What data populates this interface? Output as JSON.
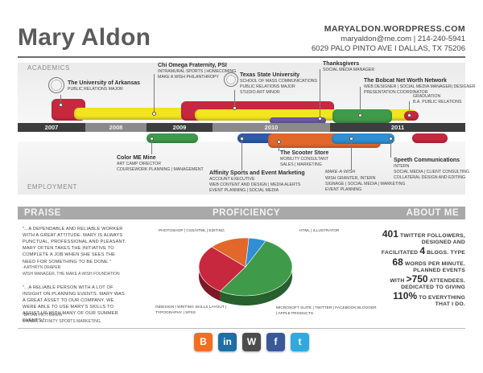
{
  "header": {
    "name": "Mary Aldon",
    "website": "MARYALDON.WORDPRESS.COM",
    "email_phone": "maryaldon@me.com | 214-240-5941",
    "address": "6029 PALO PINTO AVE I DALLAS, TX 75206"
  },
  "timeline": {
    "academics_label": "ACADEMICS",
    "employment_label": "EMPLOYMENT",
    "years": [
      "2007",
      "2008",
      "2009",
      "2010",
      "2011"
    ],
    "academics": [
      {
        "title": "The University of Arkansas",
        "lines": [
          "PUBLIC RELATIONS MAJOR"
        ]
      },
      {
        "title": "Chi Omega Fraternity, PSI",
        "lines": [
          "INTRAMURAL SPORTS | HOMECOMING",
          "MAKE A WISH PHILANTHROPY"
        ]
      },
      {
        "title": "Texas State University",
        "lines": [
          "SCHOOL OF MASS COMMUNICATIONS",
          "PUBLIC RELATIONS MAJOR",
          "STUDIO ART MINOR"
        ]
      },
      {
        "title": "Thanksgivers",
        "lines": [
          "SOCIAL MEDIA MANAGER"
        ]
      },
      {
        "title": "The Bobcat Net Worth Network",
        "lines": [
          "WEB DESIGNER | SOCIAL MEDIA MANAGER| DESIGNER",
          "PRESENTATION COORDINATOR"
        ]
      },
      {
        "title": "",
        "lines": [
          "GRADUATION",
          "B.A. PUBLIC RELATIONS"
        ]
      }
    ],
    "employment": [
      {
        "title": "Color ME Mine",
        "lines": [
          "ART CAMP DIRECTOR",
          "COURSEWORK PLANNING | MANAGEMENT"
        ]
      },
      {
        "title": "Affinity Sports and Event Marketing",
        "lines": [
          "ACCOUNT EXECUTIVE",
          "WEB CONTENT AND DESIGN | MEDIA ALERTS",
          "EVENT PLANNING | SOCIAL MEDIA"
        ]
      },
      {
        "title": "The Scooter Store",
        "lines": [
          "MOBILITY CONSULTANT",
          "SALES | MARKETING"
        ]
      },
      {
        "title": "",
        "lines": [
          "WISH GRANTER, INTERN",
          "SIGNAGE | SOCIAL MEDIA | MARKETING",
          "EVENT PLANNING"
        ]
      },
      {
        "title": "Speeth Communications",
        "lines": [
          "INTERN",
          "SOCIAL MEDIA | CLIENT CONSULTING",
          "COLLATERAL DESIGN AND EDITING"
        ]
      }
    ],
    "maw_logo": "MAKE·A·WISH"
  },
  "sections": {
    "praise": "PRAISE",
    "proficiency": "PROFICIENCY",
    "about": "ABOUT ME"
  },
  "praise": [
    {
      "text": "\"...A DEPENDABLE AND RELIABLE WORKER WITH A GREAT ATTITUDE. MARY IS ALWAYS PUNCTUAL, PROFESSIONAL AND PLEASANT. MARY OFTEN TAKES THE INITIATIVE TO COMPLETE A JOB WHEN SHE SEES THE NEED FOR SOMETHING TO BE DONE.\"",
      "author": "-KATHRYN DRAPER",
      "role": "WISH MANAGER, THE MAKE A WISH FOUNDATION"
    },
    {
      "text": "\"...A RELIABLE PERSON WITH A LOT OF INSIGHT ON PLANNING EVENTS. MARY WAS A GREAT ASSET TO OUR COMPANY. WE WERE ABLE TO USE MARY'S SKILLS TO ASSIST US WITH MANY OF OUR SUMMER EVENTS.\"",
      "author": "-BRYAN PETTIGREW",
      "role": "OWNER, AFFINITY SPORTS MARKETING"
    }
  ],
  "chart_data": {
    "type": "pie",
    "slices": [
      {
        "label": "MICROSOFT SUITE | TWITTER | FACEBOOK BLOGGER | APPLE PRODUCTS",
        "value": 52,
        "color": "#3f9a49"
      },
      {
        "label": "INDESIGN | WRITING SKILLS LAYOUT | TYPOGRAPHY | SPSS",
        "value": 28,
        "color": "#c8283e"
      },
      {
        "label": "PHOTOSHOP | CSS/HTML | EDITING",
        "value": 14,
        "color": "#e2672a"
      },
      {
        "label": "HTML | ILLUSTRATOR",
        "value": 6,
        "color": "#2f8fd2"
      }
    ]
  },
  "about": {
    "line1_num": "401",
    "line1_text": "TWITTER FOLLOWERS,",
    "line2_text": "DESIGNED AND",
    "line3_pre": "FACILITATED",
    "line3_num": "4",
    "line3_post": "BLOGS. TYPE",
    "line4_num": "68",
    "line4_text": "WORDS PER MINUTE.",
    "line5_text": "PLANNED EVENTS",
    "line6_pre": "WITH",
    "line6_num": ">750",
    "line6_post": "ATTENDEES.",
    "line7_text": "DEDICATED TO GIVING",
    "line8_num": "110%",
    "line8_text": "TO EVERYTHING",
    "line9_text": "THAT I DO."
  },
  "social": [
    {
      "name": "blogger-icon",
      "glyph": "B",
      "color": "#f26f21"
    },
    {
      "name": "linkedin-icon",
      "glyph": "in",
      "color": "#1d6fa5"
    },
    {
      "name": "wordpress-icon",
      "glyph": "W",
      "color": "#4c4c4c"
    },
    {
      "name": "facebook-icon",
      "glyph": "f",
      "color": "#3b5998"
    },
    {
      "name": "twitter-icon",
      "glyph": "t",
      "color": "#2fa9e0"
    }
  ]
}
